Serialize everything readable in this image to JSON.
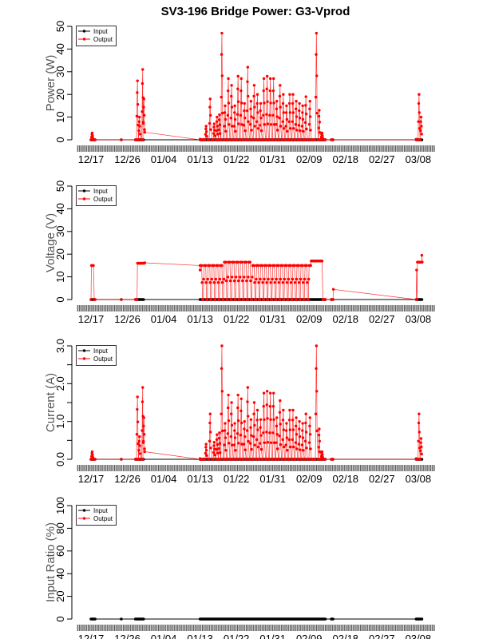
{
  "title": "SV3-196 Bridge Power: G3-Vprod",
  "colors": {
    "input": "#000000",
    "output": "#ff0000"
  },
  "xticks": [
    {
      "day": 0,
      "label": "12/17"
    },
    {
      "day": 9,
      "label": "12/26"
    },
    {
      "day": 18,
      "label": "01/04"
    },
    {
      "day": 27,
      "label": "01/13"
    },
    {
      "day": 36,
      "label": "01/22"
    },
    {
      "day": 45,
      "label": "01/31"
    },
    {
      "day": 54,
      "label": "02/09"
    },
    {
      "day": 63,
      "label": "02/18"
    },
    {
      "day": 72,
      "label": "02/27"
    },
    {
      "day": 81,
      "label": "03/08"
    }
  ],
  "sample_ranges": [
    [
      0,
      1
    ],
    [
      7.5,
      7.5
    ],
    [
      11,
      13
    ],
    [
      27,
      58
    ],
    [
      59.5,
      60
    ],
    [
      80.5,
      82
    ]
  ],
  "legend": {
    "position": "top-left",
    "entries": [
      "Input",
      "Output"
    ]
  },
  "chart_data": [
    {
      "type": "line",
      "ylabel": "Power (W)",
      "ylim": [
        0,
        50
      ],
      "yticks": [
        0,
        10,
        20,
        30,
        40,
        50
      ],
      "input_value": 0,
      "mode": "peaks",
      "peaks": [
        [
          0.3,
          3
        ],
        [
          11.5,
          26
        ],
        [
          12,
          10
        ],
        [
          12.8,
          31
        ],
        [
          13.1,
          18
        ],
        [
          28.5,
          6
        ],
        [
          29.5,
          18
        ],
        [
          30.5,
          7
        ],
        [
          31.2,
          10
        ],
        [
          31.8,
          11
        ],
        [
          32.4,
          47
        ],
        [
          33.2,
          15
        ],
        [
          34,
          27
        ],
        [
          34.8,
          24
        ],
        [
          35.6,
          15
        ],
        [
          36.4,
          28
        ],
        [
          37.2,
          27
        ],
        [
          38,
          16
        ],
        [
          38.8,
          32
        ],
        [
          39.6,
          17
        ],
        [
          40.4,
          24
        ],
        [
          41.2,
          20
        ],
        [
          42,
          16
        ],
        [
          42.8,
          27
        ],
        [
          43.6,
          28
        ],
        [
          44.4,
          27
        ],
        [
          45.2,
          27
        ],
        [
          46,
          17
        ],
        [
          46.8,
          24
        ],
        [
          47.6,
          20
        ],
        [
          48.4,
          15
        ],
        [
          49.2,
          20
        ],
        [
          50,
          20
        ],
        [
          50.8,
          17
        ],
        [
          51.6,
          16
        ],
        [
          52.4,
          15
        ],
        [
          53.2,
          19
        ],
        [
          54.2,
          17
        ],
        [
          55.8,
          47
        ],
        [
          56.5,
          13
        ],
        [
          57.2,
          3
        ],
        [
          81.2,
          20
        ],
        [
          81.7,
          10
        ]
      ],
      "extra_points": [
        [
          13.3,
          3.3
        ],
        [
          27,
          0.3
        ],
        [
          80.5,
          0.3
        ]
      ]
    },
    {
      "type": "line",
      "ylabel": "Voltage (V)",
      "ylim": [
        0,
        50
      ],
      "yticks": [
        0,
        10,
        20,
        30,
        40,
        50
      ],
      "input_value": 0,
      "mode": "plateaus",
      "plateaus": [
        [
          0.1,
          0.6,
          15
        ],
        [
          11.5,
          13.2,
          16
        ],
        [
          27,
          33,
          15
        ],
        [
          33,
          40,
          16.5
        ],
        [
          40,
          54.5,
          15
        ],
        [
          54.5,
          57.3,
          17
        ],
        [
          80.8,
          82,
          16.5
        ]
      ],
      "extra_points": [
        [
          13.3,
          16.2
        ],
        [
          27,
          13
        ],
        [
          60,
          4.5
        ],
        [
          80.6,
          13
        ],
        [
          81.9,
          19.5
        ]
      ]
    },
    {
      "type": "line",
      "ylabel": "Current (A)",
      "ylim": [
        0,
        3
      ],
      "yticks": [
        0,
        0.5,
        1,
        1.5,
        2,
        2.5,
        3
      ],
      "yticklabels": [
        "0.0",
        "",
        "1.0",
        "",
        "2.0",
        "",
        "3.0"
      ],
      "input_value": 0,
      "mode": "peaks",
      "peaks": [
        [
          0.3,
          0.2
        ],
        [
          11.5,
          1.65
        ],
        [
          12,
          0.6
        ],
        [
          12.8,
          1.9
        ],
        [
          13.1,
          1.1
        ],
        [
          28.5,
          0.4
        ],
        [
          29.5,
          1.2
        ],
        [
          30.5,
          0.45
        ],
        [
          31.2,
          0.65
        ],
        [
          31.8,
          0.7
        ],
        [
          32.4,
          3.0
        ],
        [
          33.2,
          0.95
        ],
        [
          34,
          1.7
        ],
        [
          34.8,
          1.5
        ],
        [
          35.6,
          0.95
        ],
        [
          36.4,
          1.7
        ],
        [
          37.2,
          1.6
        ],
        [
          38,
          1.0
        ],
        [
          38.8,
          1.9
        ],
        [
          39.6,
          1.05
        ],
        [
          40.4,
          1.5
        ],
        [
          41.2,
          1.3
        ],
        [
          42,
          1.05
        ],
        [
          42.8,
          1.75
        ],
        [
          43.6,
          1.8
        ],
        [
          44.4,
          1.75
        ],
        [
          45.2,
          1.75
        ],
        [
          46,
          1.1
        ],
        [
          46.8,
          1.55
        ],
        [
          47.6,
          1.3
        ],
        [
          48.4,
          0.95
        ],
        [
          49.2,
          1.3
        ],
        [
          50,
          1.3
        ],
        [
          50.8,
          1.1
        ],
        [
          51.6,
          1.0
        ],
        [
          52.4,
          0.95
        ],
        [
          53.2,
          1.2
        ],
        [
          54.2,
          1.1
        ],
        [
          55.8,
          3.0
        ],
        [
          56.5,
          0.8
        ],
        [
          57.2,
          0.2
        ],
        [
          81.2,
          1.2
        ],
        [
          81.7,
          0.55
        ]
      ],
      "extra_points": [
        [
          13.3,
          0.2
        ],
        [
          27,
          0.02
        ],
        [
          80.5,
          0.02
        ]
      ]
    },
    {
      "type": "line",
      "ylabel": "Input Ratio (%)",
      "ylim": [
        0,
        100
      ],
      "yticks": [
        0,
        20,
        40,
        60,
        80,
        100
      ],
      "input_value": 0,
      "mode": "none",
      "peaks": [],
      "extra_points": []
    }
  ]
}
